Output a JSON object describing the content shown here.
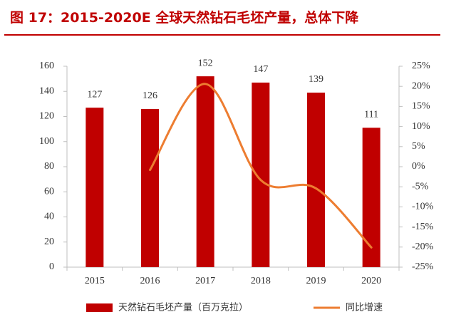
{
  "title": "图 17：2015-2020E 全球天然钻石毛坯产量，总体下降",
  "colors": {
    "title": "#c00000",
    "bar": "#c00000",
    "line": "#ed7d31",
    "axis": "#bfbfbf",
    "text": "#333333"
  },
  "chart_data": {
    "type": "bar",
    "categories": [
      "2015",
      "2016",
      "2017",
      "2018",
      "2019",
      "2020"
    ],
    "series": [
      {
        "name": "天然钻石毛坯产量（百万克拉）",
        "type": "bar",
        "axis": "left",
        "values": [
          127,
          126,
          152,
          147,
          139,
          111
        ]
      },
      {
        "name": "同比增速",
        "type": "line",
        "axis": "right",
        "values": [
          null,
          -0.8,
          20.6,
          -3.3,
          -5.4,
          -20.1
        ]
      }
    ],
    "data_labels": [
      "127",
      "126",
      "152",
      "147",
      "139",
      "111"
    ],
    "left_axis": {
      "ylim": [
        0,
        160
      ],
      "ticks": [
        "0",
        "20",
        "40",
        "60",
        "80",
        "100",
        "120",
        "140",
        "160"
      ]
    },
    "right_axis": {
      "ylim": [
        -25,
        25
      ],
      "ticks": [
        "-25%",
        "-20%",
        "-15%",
        "-10%",
        "-5%",
        "0%",
        "5%",
        "10%",
        "15%",
        "20%",
        "25%"
      ]
    },
    "legend_position": "bottom",
    "grid": false
  }
}
